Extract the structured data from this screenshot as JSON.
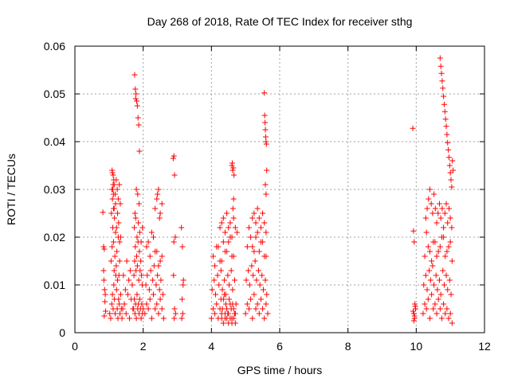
{
  "chart_data": {
    "type": "scatter",
    "title": "Day 268 of 2018, Rate Of TEC Index for receiver sthg",
    "xlabel": "GPS time / hours",
    "ylabel": "ROTI / TECUs",
    "xlim": [
      0,
      12
    ],
    "ylim": [
      0,
      0.06
    ],
    "x_ticks": [
      0,
      2,
      4,
      6,
      8,
      10,
      12
    ],
    "x_tick_labels": [
      "0",
      "2",
      "4",
      "6",
      "8",
      "10",
      "12"
    ],
    "y_ticks": [
      0,
      0.01,
      0.02,
      0.03,
      0.04,
      0.05,
      0.06
    ],
    "y_tick_labels": [
      "0",
      "0.01",
      "0.02",
      "0.03",
      "0.04",
      "0.05",
      "0.06"
    ],
    "grid": true,
    "marker": "+",
    "marker_color": "#ff0000",
    "series": [
      {
        "name": "ROTI",
        "x": [
          0.82,
          0.84,
          0.86,
          0.85,
          0.87,
          0.88,
          0.9,
          0.86,
          0.89,
          0.84,
          1.02,
          1.05,
          1.08,
          1.1,
          1.12,
          1.14,
          1.16,
          1.18,
          1.2,
          1.22,
          1.24,
          1.26,
          1.28,
          1.3,
          1.32,
          1.34,
          1.36,
          1.38,
          1.06,
          1.09,
          1.11,
          1.13,
          1.15,
          1.17,
          1.19,
          1.21,
          1.23,
          1.25,
          1.27,
          1.29,
          1.31,
          1.07,
          1.1,
          1.13,
          1.16,
          1.19,
          1.22,
          1.25,
          1.28,
          1.31,
          1.34,
          1.08,
          1.12,
          1.15,
          1.18,
          1.21,
          1.24,
          1.27,
          1.3,
          1.33,
          1.09,
          1.1,
          1.11,
          1.12,
          1.13,
          1.14,
          1.15,
          1.4,
          1.45,
          1.5,
          1.55,
          1.6,
          1.65,
          1.7,
          1.42,
          1.48,
          1.52,
          1.58,
          1.62,
          1.68,
          1.72,
          1.74,
          1.76,
          1.78,
          1.8,
          1.82,
          1.84,
          1.86,
          1.88,
          1.9,
          1.92,
          1.94,
          1.96,
          1.98,
          2.0,
          1.73,
          1.75,
          1.77,
          1.79,
          1.81,
          1.83,
          1.85,
          1.87,
          1.89,
          1.91,
          1.93,
          1.95,
          1.97,
          1.74,
          1.78,
          1.82,
          1.86,
          1.9,
          1.94,
          1.98,
          1.76,
          1.8,
          1.84,
          1.88,
          1.75,
          1.77,
          1.79,
          1.81,
          1.83,
          1.85,
          1.87,
          1.89,
          1.78,
          2.05,
          2.1,
          2.15,
          2.2,
          2.25,
          2.3,
          2.35,
          2.4,
          2.45,
          2.5,
          2.55,
          2.6,
          2.08,
          2.12,
          2.18,
          2.22,
          2.28,
          2.32,
          2.38,
          2.42,
          2.48,
          2.52,
          2.58,
          2.1,
          2.2,
          2.3,
          2.4,
          2.5,
          2.15,
          2.25,
          2.35,
          2.45,
          2.55,
          2.35,
          2.4,
          2.45,
          2.5,
          2.55,
          2.42,
          2.48,
          2.88,
          2.9,
          2.92,
          2.94,
          2.9,
          2.92,
          2.95,
          2.91,
          2.89,
          3.12,
          3.15,
          3.18,
          3.14,
          3.16,
          3.13,
          3.17,
          4.0,
          4.05,
          4.1,
          4.15,
          4.2,
          4.25,
          4.3,
          4.35,
          4.4,
          4.45,
          4.5,
          4.55,
          4.6,
          4.65,
          4.7,
          4.02,
          4.08,
          4.12,
          4.18,
          4.22,
          4.28,
          4.32,
          4.38,
          4.42,
          4.48,
          4.52,
          4.58,
          4.62,
          4.68,
          4.05,
          4.15,
          4.25,
          4.35,
          4.45,
          4.55,
          4.65,
          4.1,
          4.2,
          4.3,
          4.4,
          4.5,
          4.6,
          4.25,
          4.3,
          4.35,
          4.4,
          4.45,
          4.5,
          4.55,
          4.6,
          4.65,
          4.7,
          4.75,
          4.28,
          4.32,
          4.38,
          4.42,
          4.48,
          4.52,
          4.58,
          4.62,
          4.68,
          4.72,
          4.3,
          4.35,
          4.4,
          4.45,
          4.5,
          4.55,
          4.6,
          4.65,
          4.7,
          4.6,
          4.62,
          4.64,
          4.66,
          4.61,
          4.63,
          4.65,
          5.0,
          5.05,
          5.1,
          5.15,
          5.2,
          5.25,
          5.3,
          5.35,
          5.4,
          5.45,
          5.5,
          5.55,
          5.6,
          5.65,
          5.02,
          5.08,
          5.12,
          5.18,
          5.22,
          5.28,
          5.32,
          5.38,
          5.42,
          5.48,
          5.52,
          5.58,
          5.62,
          5.05,
          5.15,
          5.25,
          5.35,
          5.45,
          5.55,
          5.1,
          5.2,
          5.3,
          5.4,
          5.5,
          5.6,
          5.2,
          5.25,
          5.3,
          5.35,
          5.4,
          5.45,
          5.5,
          5.55,
          5.6,
          5.55,
          5.56,
          5.57,
          5.58,
          5.59,
          5.6,
          5.61,
          5.62,
          5.58,
          5.6,
          9.9,
          9.92,
          9.94,
          9.96,
          9.98,
          9.93,
          9.95,
          9.97,
          9.91,
          9.95,
          9.93,
          10.2,
          10.25,
          10.3,
          10.35,
          10.4,
          10.45,
          10.5,
          10.55,
          10.6,
          10.65,
          10.7,
          10.75,
          10.8,
          10.85,
          10.9,
          10.95,
          11.0,
          11.05,
          10.22,
          10.28,
          10.32,
          10.38,
          10.42,
          10.48,
          10.52,
          10.58,
          10.62,
          10.68,
          10.72,
          10.78,
          10.82,
          10.88,
          10.92,
          10.98,
          11.02,
          10.25,
          10.35,
          10.45,
          10.55,
          10.65,
          10.75,
          10.85,
          10.95,
          11.05,
          10.3,
          10.4,
          10.5,
          10.6,
          10.7,
          10.8,
          10.9,
          11.0,
          10.28,
          10.32,
          10.36,
          10.4,
          10.44,
          10.48,
          10.52,
          10.56,
          10.6,
          10.64,
          10.68,
          10.72,
          10.76,
          10.8,
          10.84,
          10.88,
          10.92,
          10.96,
          11.0,
          11.04,
          10.7,
          10.72,
          10.74,
          10.76,
          10.78,
          10.8,
          10.82,
          10.84,
          10.86,
          10.88,
          10.9,
          10.92,
          10.94,
          10.96,
          10.98,
          11.0,
          11.02,
          11.04,
          11.06,
          11.08
        ],
        "y": [
          0.0252,
          0.018,
          0.0175,
          0.011,
          0.009,
          0.0065,
          0.0045,
          0.0035,
          0.008,
          0.013,
          0.004,
          0.003,
          0.006,
          0.008,
          0.005,
          0.01,
          0.007,
          0.004,
          0.012,
          0.009,
          0.005,
          0.003,
          0.007,
          0.006,
          0.004,
          0.008,
          0.005,
          0.003,
          0.015,
          0.018,
          0.022,
          0.019,
          0.013,
          0.016,
          0.021,
          0.014,
          0.017,
          0.011,
          0.02,
          0.012,
          0.015,
          0.025,
          0.028,
          0.026,
          0.024,
          0.027,
          0.022,
          0.025,
          0.023,
          0.019,
          0.02,
          0.03,
          0.033,
          0.031,
          0.029,
          0.032,
          0.03,
          0.028,
          0.031,
          0.027,
          0.034,
          0.0335,
          0.03,
          0.031,
          0.029,
          0.032,
          0.026,
          0.005,
          0.006,
          0.004,
          0.008,
          0.003,
          0.007,
          0.005,
          0.012,
          0.009,
          0.015,
          0.011,
          0.013,
          0.01,
          0.005,
          0.007,
          0.004,
          0.006,
          0.003,
          0.008,
          0.005,
          0.006,
          0.004,
          0.007,
          0.005,
          0.003,
          0.006,
          0.004,
          0.005,
          0.012,
          0.015,
          0.018,
          0.013,
          0.016,
          0.014,
          0.019,
          0.011,
          0.017,
          0.013,
          0.015,
          0.012,
          0.01,
          0.022,
          0.024,
          0.02,
          0.023,
          0.021,
          0.019,
          0.022,
          0.025,
          0.03,
          0.029,
          0.027,
          0.054,
          0.051,
          0.05,
          0.0485,
          0.0475,
          0.045,
          0.0435,
          0.038,
          0.049,
          0.004,
          0.006,
          0.005,
          0.007,
          0.003,
          0.008,
          0.005,
          0.006,
          0.004,
          0.007,
          0.005,
          0.003,
          0.01,
          0.012,
          0.009,
          0.013,
          0.011,
          0.014,
          0.01,
          0.012,
          0.009,
          0.011,
          0.008,
          0.018,
          0.016,
          0.02,
          0.017,
          0.015,
          0.019,
          0.021,
          0.017,
          0.014,
          0.016,
          0.026,
          0.028,
          0.03,
          0.025,
          0.027,
          0.029,
          0.024,
          0.0365,
          0.037,
          0.033,
          0.02,
          0.019,
          0.005,
          0.004,
          0.003,
          0.012,
          0.022,
          0.018,
          0.011,
          0.007,
          0.004,
          0.003,
          0.01,
          0.003,
          0.005,
          0.004,
          0.006,
          0.003,
          0.005,
          0.004,
          0.007,
          0.003,
          0.005,
          0.004,
          0.006,
          0.003,
          0.005,
          0.004,
          0.009,
          0.011,
          0.008,
          0.012,
          0.01,
          0.013,
          0.009,
          0.011,
          0.008,
          0.012,
          0.01,
          0.013,
          0.009,
          0.011,
          0.016,
          0.018,
          0.015,
          0.019,
          0.017,
          0.02,
          0.016,
          0.014,
          0.018,
          0.015,
          0.017,
          0.019,
          0.016,
          0.022,
          0.023,
          0.024,
          0.021,
          0.025,
          0.022,
          0.023,
          0.02,
          0.024,
          0.022,
          0.021,
          0.007,
          0.005,
          0.008,
          0.006,
          0.004,
          0.007,
          0.005,
          0.006,
          0.004,
          0.006,
          0.003,
          0.002,
          0.004,
          0.003,
          0.002,
          0.003,
          0.002,
          0.003,
          0.002,
          0.035,
          0.034,
          0.0345,
          0.033,
          0.0355,
          0.026,
          0.028,
          0.004,
          0.006,
          0.005,
          0.007,
          0.003,
          0.008,
          0.005,
          0.006,
          0.004,
          0.007,
          0.005,
          0.003,
          0.006,
          0.004,
          0.011,
          0.013,
          0.01,
          0.014,
          0.012,
          0.015,
          0.011,
          0.013,
          0.01,
          0.012,
          0.009,
          0.011,
          0.008,
          0.018,
          0.02,
          0.017,
          0.021,
          0.019,
          0.016,
          0.022,
          0.018,
          0.02,
          0.017,
          0.019,
          0.016,
          0.024,
          0.025,
          0.023,
          0.026,
          0.024,
          0.022,
          0.025,
          0.023,
          0.021,
          0.0502,
          0.0455,
          0.044,
          0.0425,
          0.041,
          0.04,
          0.0395,
          0.034,
          0.031,
          0.029,
          0.0428,
          0.0213,
          0.019,
          0.006,
          0.005,
          0.004,
          0.003,
          0.0055,
          0.0045,
          0.0035,
          0.0025,
          0.004,
          0.006,
          0.005,
          0.007,
          0.003,
          0.008,
          0.005,
          0.006,
          0.004,
          0.007,
          0.005,
          0.003,
          0.006,
          0.004,
          0.005,
          0.003,
          0.004,
          0.002,
          0.01,
          0.012,
          0.009,
          0.013,
          0.011,
          0.014,
          0.01,
          0.012,
          0.009,
          0.011,
          0.008,
          0.013,
          0.01,
          0.012,
          0.009,
          0.011,
          0.008,
          0.016,
          0.018,
          0.015,
          0.019,
          0.017,
          0.02,
          0.016,
          0.018,
          0.015,
          0.021,
          0.017,
          0.019,
          0.016,
          0.018,
          0.02,
          0.017,
          0.019,
          0.024,
          0.026,
          0.028,
          0.03,
          0.027,
          0.025,
          0.029,
          0.026,
          0.023,
          0.025,
          0.027,
          0.024,
          0.026,
          0.022,
          0.025,
          0.027,
          0.023,
          0.026,
          0.024,
          0.022,
          0.0575,
          0.0558,
          0.0543,
          0.0527,
          0.0512,
          0.0495,
          0.0478,
          0.0463,
          0.0447,
          0.0432,
          0.0415,
          0.0398,
          0.0383,
          0.0367,
          0.035,
          0.0335,
          0.032,
          0.0305,
          0.036,
          0.034
        ]
      }
    ]
  }
}
